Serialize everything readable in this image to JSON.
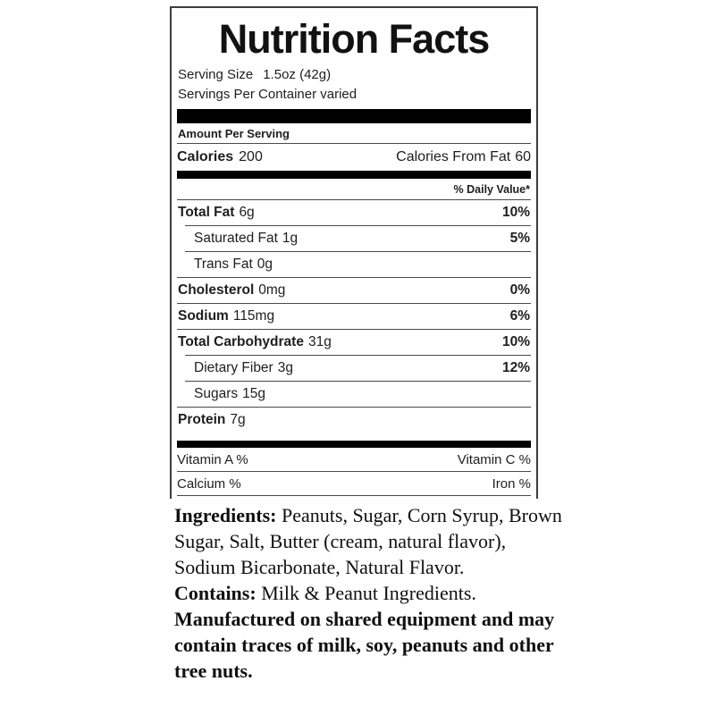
{
  "label": {
    "title": "Nutrition Facts",
    "serving_size_label": "Serving Size",
    "serving_size_value": "1.5oz (42g)",
    "servings_per_container": "Servings Per Container varied",
    "amount_per_serving": "Amount Per Serving",
    "calories_label": "Calories",
    "calories_value": "200",
    "calories_from_fat_label": "Calories From Fat",
    "calories_from_fat_value": "60",
    "daily_value_header": "% Daily Value*",
    "nutrients": [
      {
        "name": "Total Fat",
        "amount": "6g",
        "daily_value": "10%"
      },
      {
        "name": "Saturated Fat",
        "amount": "1g",
        "daily_value": "5%"
      },
      {
        "name": "Trans Fat",
        "amount": "0g",
        "daily_value": ""
      },
      {
        "name": "Cholesterol",
        "amount": "0mg",
        "daily_value": "0%"
      },
      {
        "name": "Sodium",
        "amount": "115mg",
        "daily_value": "6%"
      },
      {
        "name": "Total Carbohydrate",
        "amount": "31g",
        "daily_value": "10%"
      },
      {
        "name": "Dietary Fiber",
        "amount": "3g",
        "daily_value": "12%"
      },
      {
        "name": "Sugars",
        "amount": "15g",
        "daily_value": ""
      },
      {
        "name": "Protein",
        "amount": "7g",
        "daily_value": ""
      }
    ],
    "micronutrients": [
      {
        "left": "Vitamin A %",
        "right": "Vitamin C %"
      },
      {
        "left": "Calcium %",
        "right": "Iron %"
      }
    ]
  },
  "ingredients_section": {
    "ingredients_label": "Ingredients:",
    "ingredients_text": "Peanuts, Sugar, Corn Syrup, Brown Sugar, Salt, Butter (cream, natural flavor), Sodium Bicarbonate, Natural Flavor.",
    "contains_label": "Contains:",
    "contains_text": "Milk & Peanut Ingredients.",
    "allergen_warning": "Manufactured on shared equipment and may contain traces of milk, soy, peanuts and other tree nuts."
  },
  "colors": {
    "bar": "#000000",
    "text": "#1e1e1e",
    "border": "#3d3d3d"
  }
}
